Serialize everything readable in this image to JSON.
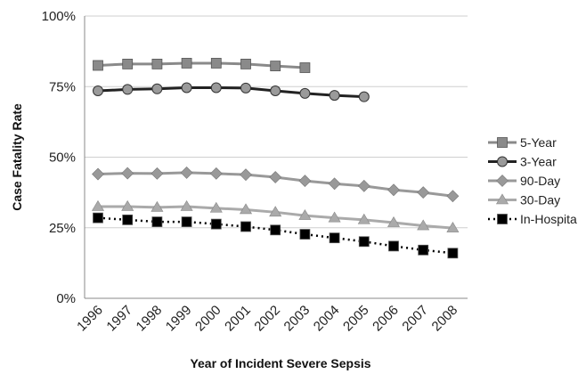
{
  "chart_data": {
    "type": "line",
    "xlabel": "Year of Incident Severe Sepsis",
    "ylabel": "Case Fatality Rate",
    "ylim": [
      0,
      100
    ],
    "yticks": [
      "0%",
      "25%",
      "50%",
      "75%",
      "100%"
    ],
    "grid": true,
    "legend_position": "right",
    "categories": [
      "1996",
      "1997",
      "1998",
      "1999",
      "2000",
      "2001",
      "2002",
      "2003",
      "2004",
      "2005",
      "2006",
      "2007",
      "2008"
    ],
    "series": [
      {
        "name": "5-Year",
        "color": "#8a8a8a",
        "marker": "square",
        "dash": "solid",
        "values": [
          82.5,
          83,
          83,
          83.3,
          83.3,
          83,
          82.3,
          81.7,
          null,
          null,
          null,
          null,
          null
        ]
      },
      {
        "name": "3-Year",
        "color": "#222222",
        "marker": "circle",
        "dash": "solid",
        "values": [
          73.5,
          74,
          74.2,
          74.6,
          74.6,
          74.5,
          73.5,
          72.6,
          71.9,
          71.4,
          null,
          null,
          null
        ]
      },
      {
        "name": "90-Day",
        "color": "#999999",
        "marker": "diamond",
        "dash": "solid",
        "values": [
          44,
          44.3,
          44.2,
          44.5,
          44.2,
          43.8,
          42.9,
          41.6,
          40.6,
          39.8,
          38.4,
          37.5,
          36.2
        ]
      },
      {
        "name": "30-Day",
        "color": "#aaaaaa",
        "marker": "triangle",
        "dash": "solid",
        "values": [
          32.5,
          32.5,
          32.2,
          32.5,
          31.9,
          31.4,
          30.5,
          29.3,
          28.5,
          27.8,
          26.8,
          25.7,
          24.9
        ]
      },
      {
        "name": "In-Hospita",
        "color": "#000000",
        "marker": "square",
        "dash": "dotted",
        "values": [
          28.5,
          27.8,
          27.1,
          27.1,
          26.3,
          25.4,
          24.2,
          22.7,
          21.4,
          20.1,
          18.5,
          17.1,
          16
        ]
      }
    ]
  }
}
